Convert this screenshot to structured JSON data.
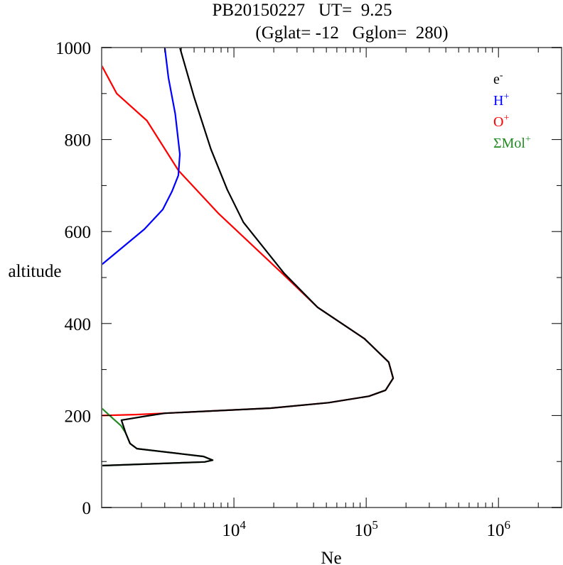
{
  "chart_data": {
    "type": "line",
    "title": "PB20150227   UT=  9.25",
    "subtitle": "(Gglat= -12   Gglon=  280)",
    "xlabel": "Ne",
    "ylabel": "altitude",
    "xscale": "log",
    "xlim": [
      1000,
      3000000
    ],
    "ylim": [
      0,
      1000
    ],
    "x_tick_labels": [
      {
        "base": "10",
        "exp": "4",
        "value": 10000
      },
      {
        "base": "10",
        "exp": "5",
        "value": 100000
      },
      {
        "base": "10",
        "exp": "6",
        "value": 1000000
      }
    ],
    "y_ticks": [
      0,
      200,
      400,
      600,
      800,
      1000
    ],
    "y_tick_labels": [
      "0",
      "200",
      "400",
      "600",
      "800",
      "1000"
    ],
    "grid": false,
    "legend_position": "top-right",
    "series": [
      {
        "name": "e-",
        "label": "e",
        "sup": "-",
        "color": "#000000",
        "points": [
          [
            3900,
            1000
          ],
          [
            5000,
            892
          ],
          [
            6700,
            779
          ],
          [
            8900,
            691
          ],
          [
            11800,
            620
          ],
          [
            24000,
            509
          ],
          [
            43000,
            435
          ],
          [
            97000,
            367
          ],
          [
            148000,
            316
          ],
          [
            160000,
            281
          ],
          [
            140000,
            255
          ],
          [
            105000,
            242
          ],
          [
            52000,
            228
          ],
          [
            19000,
            216
          ],
          [
            7000,
            210
          ],
          [
            3000,
            205
          ],
          [
            2200,
            199
          ],
          [
            1410,
            190
          ],
          [
            1520,
            162
          ],
          [
            1640,
            139
          ],
          [
            1850,
            128
          ],
          [
            5900,
            111
          ],
          [
            6900,
            103
          ],
          [
            6000,
            99
          ],
          [
            1000,
            91
          ]
        ]
      },
      {
        "name": "H+",
        "label": "H",
        "sup": "+",
        "color": "#0000ff",
        "points": [
          [
            3000,
            1000
          ],
          [
            3200,
            934
          ],
          [
            3600,
            856
          ],
          [
            3900,
            768
          ],
          [
            3800,
            722
          ],
          [
            3400,
            687
          ],
          [
            2900,
            648
          ],
          [
            2100,
            605
          ],
          [
            1000,
            528
          ]
        ]
      },
      {
        "name": "O+",
        "label": "O",
        "sup": "+",
        "color": "#ff0000",
        "points": [
          [
            1000,
            961
          ],
          [
            1300,
            900
          ],
          [
            2200,
            841
          ],
          [
            3800,
            733
          ],
          [
            7600,
            640
          ],
          [
            24000,
            505
          ],
          [
            43000,
            435
          ],
          [
            97000,
            367
          ],
          [
            148000,
            316
          ],
          [
            160000,
            281
          ],
          [
            140000,
            255
          ],
          [
            105000,
            242
          ],
          [
            52000,
            228
          ],
          [
            19000,
            216
          ],
          [
            7000,
            210
          ],
          [
            3000,
            205
          ],
          [
            1800,
            202
          ],
          [
            1000,
            200
          ]
        ]
      },
      {
        "name": "ΣMol+",
        "label": "ΣMol",
        "sup": "+",
        "color": "#228b22",
        "points": [
          [
            1000,
            216
          ],
          [
            1200,
            195
          ],
          [
            1400,
            178
          ],
          [
            1520,
            162
          ],
          [
            1640,
            139
          ],
          [
            1850,
            128
          ],
          [
            5900,
            111
          ],
          [
            6900,
            103
          ],
          [
            6000,
            99
          ],
          [
            1000,
            91
          ]
        ]
      }
    ]
  }
}
